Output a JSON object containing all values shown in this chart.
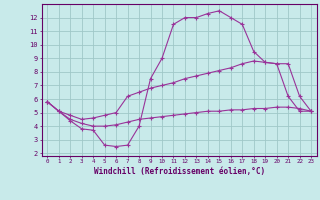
{
  "xlabel": "Windchill (Refroidissement éolien,°C)",
  "background_color": "#c8eaea",
  "grid_color": "#a0c8c8",
  "line_color": "#993399",
  "xlim": [
    -0.5,
    23.5
  ],
  "ylim": [
    1.8,
    13.0
  ],
  "xticks": [
    0,
    1,
    2,
    3,
    4,
    5,
    6,
    7,
    8,
    9,
    10,
    11,
    12,
    13,
    14,
    15,
    16,
    17,
    18,
    19,
    20,
    21,
    22,
    23
  ],
  "yticks": [
    2,
    3,
    4,
    5,
    6,
    7,
    8,
    9,
    10,
    11,
    12
  ],
  "line1_x": [
    0,
    1,
    2,
    3,
    4,
    5,
    6,
    7,
    8,
    9,
    10,
    11,
    12,
    13,
    14,
    15,
    16,
    17,
    18,
    19,
    20,
    21,
    22,
    23
  ],
  "line1_y": [
    5.8,
    5.1,
    4.4,
    3.8,
    3.7,
    2.6,
    2.5,
    2.6,
    4.0,
    7.5,
    9.0,
    11.5,
    12.0,
    12.0,
    12.3,
    12.5,
    12.0,
    11.5,
    9.5,
    8.7,
    8.6,
    6.2,
    5.1,
    5.1
  ],
  "line2_x": [
    0,
    1,
    2,
    3,
    4,
    5,
    6,
    7,
    8,
    9,
    10,
    11,
    12,
    13,
    14,
    15,
    16,
    17,
    18,
    19,
    20,
    21,
    22,
    23
  ],
  "line2_y": [
    5.8,
    5.1,
    4.8,
    4.5,
    4.6,
    4.8,
    5.0,
    6.2,
    6.5,
    6.8,
    7.0,
    7.2,
    7.5,
    7.7,
    7.9,
    8.1,
    8.3,
    8.6,
    8.8,
    8.7,
    8.6,
    8.6,
    6.2,
    5.1
  ],
  "line3_x": [
    0,
    1,
    2,
    3,
    4,
    5,
    6,
    7,
    8,
    9,
    10,
    11,
    12,
    13,
    14,
    15,
    16,
    17,
    18,
    19,
    20,
    21,
    22,
    23
  ],
  "line3_y": [
    5.8,
    5.1,
    4.5,
    4.2,
    4.0,
    4.0,
    4.1,
    4.3,
    4.5,
    4.6,
    4.7,
    4.8,
    4.9,
    5.0,
    5.1,
    5.1,
    5.2,
    5.2,
    5.3,
    5.3,
    5.4,
    5.4,
    5.3,
    5.1
  ]
}
